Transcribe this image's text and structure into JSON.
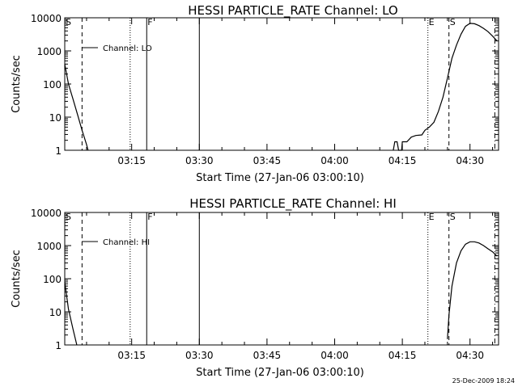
{
  "chart_data": [
    {
      "type": "line",
      "title": "HESSI PARTICLE_RATE Channel: LO",
      "xlabel": "Start Time (27-Jan-06 03:00:10)",
      "ylabel": "Counts/sec",
      "y_scale": "log",
      "ylim": [
        1,
        10000
      ],
      "y_ticks": [
        "1",
        "10",
        "100",
        "1000",
        "10000"
      ],
      "xlim": [
        "03:00:10",
        "04:36:20"
      ],
      "x_ticks": [
        "03:15",
        "03:30",
        "03:45",
        "04:00",
        "04:15",
        "04:30"
      ],
      "legend": {
        "placement": "top-left",
        "entries": [
          "Channel: LO"
        ]
      },
      "grid": false,
      "series": [
        {
          "name": "Channel: LO",
          "segments": [
            [
              [
                "03:00:10",
                400
              ],
              [
                "03:01:00",
                100
              ],
              [
                "03:02:00",
                35
              ],
              [
                "03:03:00",
                12
              ],
              [
                "03:04:00",
                4
              ],
              [
                "03:05:00",
                1.5
              ],
              [
                "03:05:20",
                1
              ]
            ],
            [
              [
                "04:13:00",
                1
              ],
              [
                "04:13:20",
                1.8
              ],
              [
                "04:13:50",
                1.8
              ],
              [
                "04:14:10",
                1
              ],
              [
                "04:14:50",
                1
              ],
              [
                "04:15:00",
                1.8
              ],
              [
                "04:16:00",
                1.8
              ],
              [
                "04:17:00",
                2.5
              ],
              [
                "04:18:00",
                2.8
              ],
              [
                "04:19:20",
                2.9
              ],
              [
                "04:20:00",
                4
              ],
              [
                "04:21:00",
                5
              ],
              [
                "04:22:00",
                7
              ],
              [
                "04:23:00",
                15
              ],
              [
                "04:24:00",
                40
              ],
              [
                "04:25:00",
                150
              ],
              [
                "04:26:00",
                600
              ],
              [
                "04:27:00",
                1500
              ],
              [
                "04:28:00",
                3200
              ],
              [
                "04:29:00",
                5500
              ],
              [
                "04:30:00",
                6800
              ],
              [
                "04:31:00",
                6600
              ],
              [
                "04:32:00",
                5800
              ],
              [
                "04:33:00",
                4800
              ],
              [
                "04:34:00",
                3800
              ],
              [
                "04:35:00",
                2800
              ],
              [
                "04:36:00",
                2000
              ]
            ]
          ]
        }
      ],
      "markers": [
        {
          "label": "S",
          "time": "03:00:10",
          "style": "dashed",
          "line": false
        },
        {
          "label": "",
          "time": "03:04:00",
          "style": "dashed",
          "line": true
        },
        {
          "label": "",
          "time": "03:14:40",
          "style": "dotted",
          "line": true
        },
        {
          "label": "F",
          "time": "03:18:20",
          "style": "solid",
          "line": true
        },
        {
          "label": "",
          "time": "03:30:00",
          "style": "solid",
          "line": true
        },
        {
          "label": "E",
          "time": "04:20:40",
          "style": "dotted",
          "line": true
        },
        {
          "label": "S",
          "time": "04:25:20",
          "style": "dashed",
          "line": true
        },
        {
          "label": "",
          "time": "04:35:30",
          "style": "dashdot",
          "line": true
        }
      ]
    },
    {
      "type": "line",
      "title": "HESSI PARTICLE_RATE Channel: HI",
      "xlabel": "Start Time (27-Jan-06 03:00:10)",
      "ylabel": "Counts/sec",
      "y_scale": "log",
      "ylim": [
        1,
        10000
      ],
      "y_ticks": [
        "1",
        "10",
        "100",
        "1000",
        "10000"
      ],
      "xlim": [
        "03:00:10",
        "04:36:20"
      ],
      "x_ticks": [
        "03:15",
        "03:30",
        "03:45",
        "04:00",
        "04:15",
        "04:30"
      ],
      "legend": {
        "placement": "top-left",
        "entries": [
          "Channel: HI"
        ]
      },
      "grid": false,
      "series": [
        {
          "name": "Channel: HI",
          "segments": [
            [
              [
                "03:00:10",
                80
              ],
              [
                "03:01:00",
                12
              ],
              [
                "03:02:00",
                3
              ],
              [
                "03:02:50",
                1
              ]
            ],
            [
              [
                "04:25:00",
                1.5
              ],
              [
                "04:25:20",
                8
              ],
              [
                "04:26:00",
                60
              ],
              [
                "04:27:00",
                300
              ],
              [
                "04:28:00",
                700
              ],
              [
                "04:29:00",
                1100
              ],
              [
                "04:30:00",
                1300
              ],
              [
                "04:31:00",
                1300
              ],
              [
                "04:32:00",
                1200
              ],
              [
                "04:33:00",
                1000
              ],
              [
                "04:34:00",
                800
              ],
              [
                "04:35:00",
                650
              ],
              [
                "04:36:00",
                480
              ]
            ]
          ]
        }
      ],
      "markers": [
        {
          "label": "S",
          "time": "03:00:10",
          "style": "dashed",
          "line": false
        },
        {
          "label": "",
          "time": "03:04:00",
          "style": "dashed",
          "line": true
        },
        {
          "label": "",
          "time": "03:14:40",
          "style": "dotted",
          "line": true
        },
        {
          "label": "F",
          "time": "03:18:20",
          "style": "solid",
          "line": true
        },
        {
          "label": "",
          "time": "03:30:00",
          "style": "solid",
          "line": true
        },
        {
          "label": "E",
          "time": "04:20:40",
          "style": "dotted",
          "line": true
        },
        {
          "label": "S",
          "time": "04:25:20",
          "style": "dashed",
          "line": true
        },
        {
          "label": "",
          "time": "04:35:30",
          "style": "dashdot",
          "line": true
        }
      ]
    }
  ],
  "footer": {
    "timestamp": "25-Dec-2009 18:24"
  }
}
